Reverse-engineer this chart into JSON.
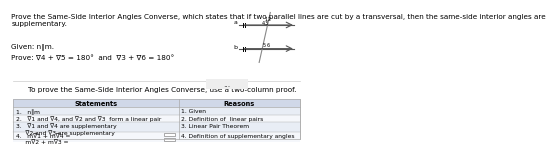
{
  "title_text": "Prove the Same-Side Interior Angles Converse, which states that if two parallel lines are cut by a transversal, then the same-side interior angles are\nsupplementary.",
  "given_text": "Given: n∥m.",
  "prove_text": "Prove: ∇4 + ∇5 = 180°  and  ∇3 + ∇6 = 180°",
  "instruction_text": "To prove the Same-Side Interior Angles Converse, use a two-column proof.",
  "col1_header": "Statements",
  "col2_header": "Reasons",
  "rows": [
    [
      "1.   n∥m",
      "1. Given"
    ],
    [
      "2.   ∇1 and ∇4, and ∇2 and ∇3  form a linear pair",
      "2. Definition of  linear pairs"
    ],
    [
      "3.   ∇1 and ∇4 are supplementary\n     ∇2 and ∇3 are supplementary",
      "3. Linear Pair Theorem"
    ],
    [
      "4.   m∇1 + m∇4 =\n     m∇2 + m∇3 =",
      "4. Definition of supplementary angles"
    ]
  ],
  "bg_color": "#ffffff",
  "header_bg": "#d0d8e8",
  "row_bg_odd": "#e8edf5",
  "row_bg_even": "#f5f7fb",
  "border_color": "#aaaaaa",
  "title_fontsize": 5.2,
  "body_fontsize": 4.8,
  "sep_color": "#cccccc"
}
